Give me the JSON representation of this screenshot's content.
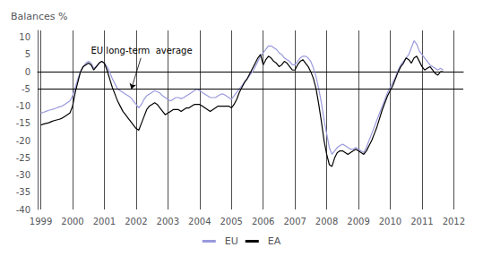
{
  "chart_data": {
    "type": "line",
    "y_label": "Balances %",
    "xlim": [
      1998.9,
      2012.3
    ],
    "xticks": [
      1999,
      2000,
      2001,
      2002,
      2003,
      2004,
      2005,
      2006,
      2007,
      2008,
      2009,
      2010,
      2011,
      2012
    ],
    "ylim": [
      -40,
      12
    ],
    "yticks": [
      10,
      5,
      0,
      -5,
      -10,
      -15,
      -20,
      -25,
      -30,
      -35,
      -40
    ],
    "grid": "x",
    "legend": "bottom",
    "reference_y": -5,
    "annotations": [
      {
        "text": "EU long-term  average",
        "x": 2001.85,
        "y": -5
      }
    ],
    "x": [
      1999,
      1999.0833,
      1999.1667,
      1999.25,
      1999.3333,
      1999.4167,
      1999.5,
      1999.5833,
      1999.6667,
      1999.75,
      1999.8333,
      1999.9167,
      2000,
      2000.0833,
      2000.1667,
      2000.25,
      2000.3333,
      2000.4167,
      2000.5,
      2000.5833,
      2000.6667,
      2000.75,
      2000.8333,
      2000.9167,
      2001,
      2001.0833,
      2001.1667,
      2001.25,
      2001.3333,
      2001.4167,
      2001.5,
      2001.5833,
      2001.6667,
      2001.75,
      2001.8333,
      2001.9167,
      2002,
      2002.0833,
      2002.1667,
      2002.25,
      2002.3333,
      2002.4167,
      2002.5,
      2002.5833,
      2002.6667,
      2002.75,
      2002.8333,
      2002.9167,
      2003,
      2003.0833,
      2003.1667,
      2003.25,
      2003.3333,
      2003.4167,
      2003.5,
      2003.5833,
      2003.6667,
      2003.75,
      2003.8333,
      2003.9167,
      2004,
      2004.0833,
      2004.1667,
      2004.25,
      2004.3333,
      2004.4167,
      2004.5,
      2004.5833,
      2004.6667,
      2004.75,
      2004.8333,
      2004.9167,
      2005,
      2005.0833,
      2005.1667,
      2005.25,
      2005.3333,
      2005.4167,
      2005.5,
      2005.5833,
      2005.6667,
      2005.75,
      2005.8333,
      2005.9167,
      2006,
      2006.0833,
      2006.1667,
      2006.25,
      2006.3333,
      2006.4167,
      2006.5,
      2006.5833,
      2006.6667,
      2006.75,
      2006.8333,
      2006.9167,
      2007,
      2007.0833,
      2007.1667,
      2007.25,
      2007.3333,
      2007.4167,
      2007.5,
      2007.5833,
      2007.6667,
      2007.75,
      2007.8333,
      2007.9167,
      2008,
      2008.0833,
      2008.1667,
      2008.25,
      2008.3333,
      2008.4167,
      2008.5,
      2008.5833,
      2008.6667,
      2008.75,
      2008.8333,
      2008.9167,
      2009,
      2009.0833,
      2009.1667,
      2009.25,
      2009.3333,
      2009.4167,
      2009.5,
      2009.5833,
      2009.6667,
      2009.75,
      2009.8333,
      2009.9167,
      2010,
      2010.0833,
      2010.1667,
      2010.25,
      2010.3333,
      2010.4167,
      2010.5,
      2010.5833,
      2010.6667,
      2010.75,
      2010.8333,
      2010.9167,
      2011,
      2011.0833,
      2011.1667,
      2011.25,
      2011.3333,
      2011.4167,
      2011.5,
      2011.5833,
      2011.6667
    ],
    "series": [
      {
        "name": "EU",
        "color": "#9999dd",
        "values": [
          -12.0,
          -11.8,
          -11.5,
          -11.2,
          -11.0,
          -10.8,
          -10.5,
          -10.2,
          -10.0,
          -9.5,
          -9.0,
          -8.5,
          -7.0,
          -4.5,
          -2.0,
          0.0,
          1.5,
          2.5,
          3.0,
          2.5,
          1.0,
          1.5,
          2.5,
          3.0,
          2.5,
          1.5,
          0.0,
          -2.0,
          -3.5,
          -5.0,
          -5.5,
          -6.0,
          -6.5,
          -7.0,
          -7.5,
          -8.5,
          -9.5,
          -10.5,
          -9.5,
          -8.0,
          -7.0,
          -6.5,
          -6.0,
          -5.5,
          -5.8,
          -6.2,
          -7.0,
          -7.5,
          -8.0,
          -8.5,
          -8.0,
          -7.5,
          -7.5,
          -7.8,
          -7.5,
          -7.0,
          -6.5,
          -6.0,
          -5.5,
          -5.0,
          -5.5,
          -6.0,
          -6.5,
          -7.0,
          -7.5,
          -7.5,
          -7.5,
          -7.0,
          -6.5,
          -6.5,
          -7.0,
          -7.5,
          -8.0,
          -7.0,
          -6.0,
          -5.0,
          -4.0,
          -3.0,
          -2.0,
          -1.0,
          0.0,
          1.5,
          3.0,
          4.5,
          5.5,
          6.5,
          7.5,
          7.5,
          7.0,
          6.5,
          5.5,
          5.0,
          4.0,
          3.5,
          3.0,
          2.0,
          2.0,
          3.0,
          4.0,
          4.5,
          4.5,
          4.0,
          3.0,
          1.0,
          -1.5,
          -5.0,
          -9.0,
          -14.0,
          -18.0,
          -22.0,
          -24.0,
          -23.0,
          -22.0,
          -21.5,
          -21.0,
          -21.5,
          -22.0,
          -22.5,
          -22.5,
          -22.0,
          -22.5,
          -23.0,
          -23.5,
          -22.0,
          -20.0,
          -18.0,
          -16.0,
          -14.0,
          -12.0,
          -10.0,
          -8.0,
          -6.0,
          -4.5,
          -3.0,
          -1.5,
          0.5,
          2.0,
          3.0,
          4.0,
          5.0,
          7.0,
          9.0,
          8.0,
          6.0,
          5.0,
          4.0,
          3.0,
          2.0,
          1.5,
          1.0,
          0.5,
          1.0,
          0.5
        ]
      },
      {
        "name": "EA",
        "color": "#000000",
        "values": [
          -15.5,
          -15.2,
          -15.0,
          -14.8,
          -14.5,
          -14.2,
          -14.0,
          -13.8,
          -13.5,
          -13.0,
          -12.5,
          -12.0,
          -10.0,
          -6.0,
          -3.0,
          0.0,
          1.5,
          2.0,
          2.5,
          2.0,
          0.5,
          1.5,
          2.5,
          3.0,
          2.5,
          0.5,
          -2.0,
          -4.5,
          -6.5,
          -8.5,
          -10.0,
          -11.5,
          -12.5,
          -13.5,
          -14.5,
          -15.5,
          -16.5,
          -17.0,
          -15.0,
          -13.0,
          -11.0,
          -10.0,
          -9.5,
          -9.0,
          -9.5,
          -10.5,
          -11.5,
          -12.5,
          -12.0,
          -11.5,
          -11.0,
          -11.0,
          -11.0,
          -11.5,
          -11.0,
          -10.5,
          -10.5,
          -10.0,
          -9.5,
          -9.5,
          -9.5,
          -10.0,
          -10.5,
          -11.0,
          -11.5,
          -11.0,
          -10.5,
          -10.0,
          -10.0,
          -10.0,
          -10.0,
          -10.0,
          -10.5,
          -9.5,
          -8.0,
          -6.0,
          -4.5,
          -3.0,
          -2.0,
          -0.5,
          1.0,
          2.5,
          4.0,
          5.0,
          2.0,
          3.5,
          4.5,
          4.0,
          3.0,
          2.5,
          1.5,
          2.0,
          3.0,
          2.5,
          1.5,
          0.5,
          0.5,
          2.0,
          3.0,
          3.5,
          2.5,
          1.5,
          0.0,
          -2.0,
          -5.0,
          -9.5,
          -14.5,
          -20.0,
          -24.0,
          -27.0,
          -27.5,
          -25.0,
          -23.5,
          -23.0,
          -23.0,
          -23.5,
          -24.0,
          -23.5,
          -23.0,
          -22.5,
          -23.0,
          -23.5,
          -24.0,
          -23.0,
          -21.5,
          -20.0,
          -18.0,
          -16.0,
          -13.5,
          -11.0,
          -9.0,
          -7.0,
          -5.5,
          -4.0,
          -2.0,
          0.0,
          1.5,
          2.5,
          4.0,
          3.5,
          2.5,
          4.0,
          4.5,
          3.0,
          1.5,
          0.5,
          1.0,
          1.5,
          0.5,
          -0.5,
          -1.0,
          0.0,
          0.0
        ]
      }
    ]
  }
}
